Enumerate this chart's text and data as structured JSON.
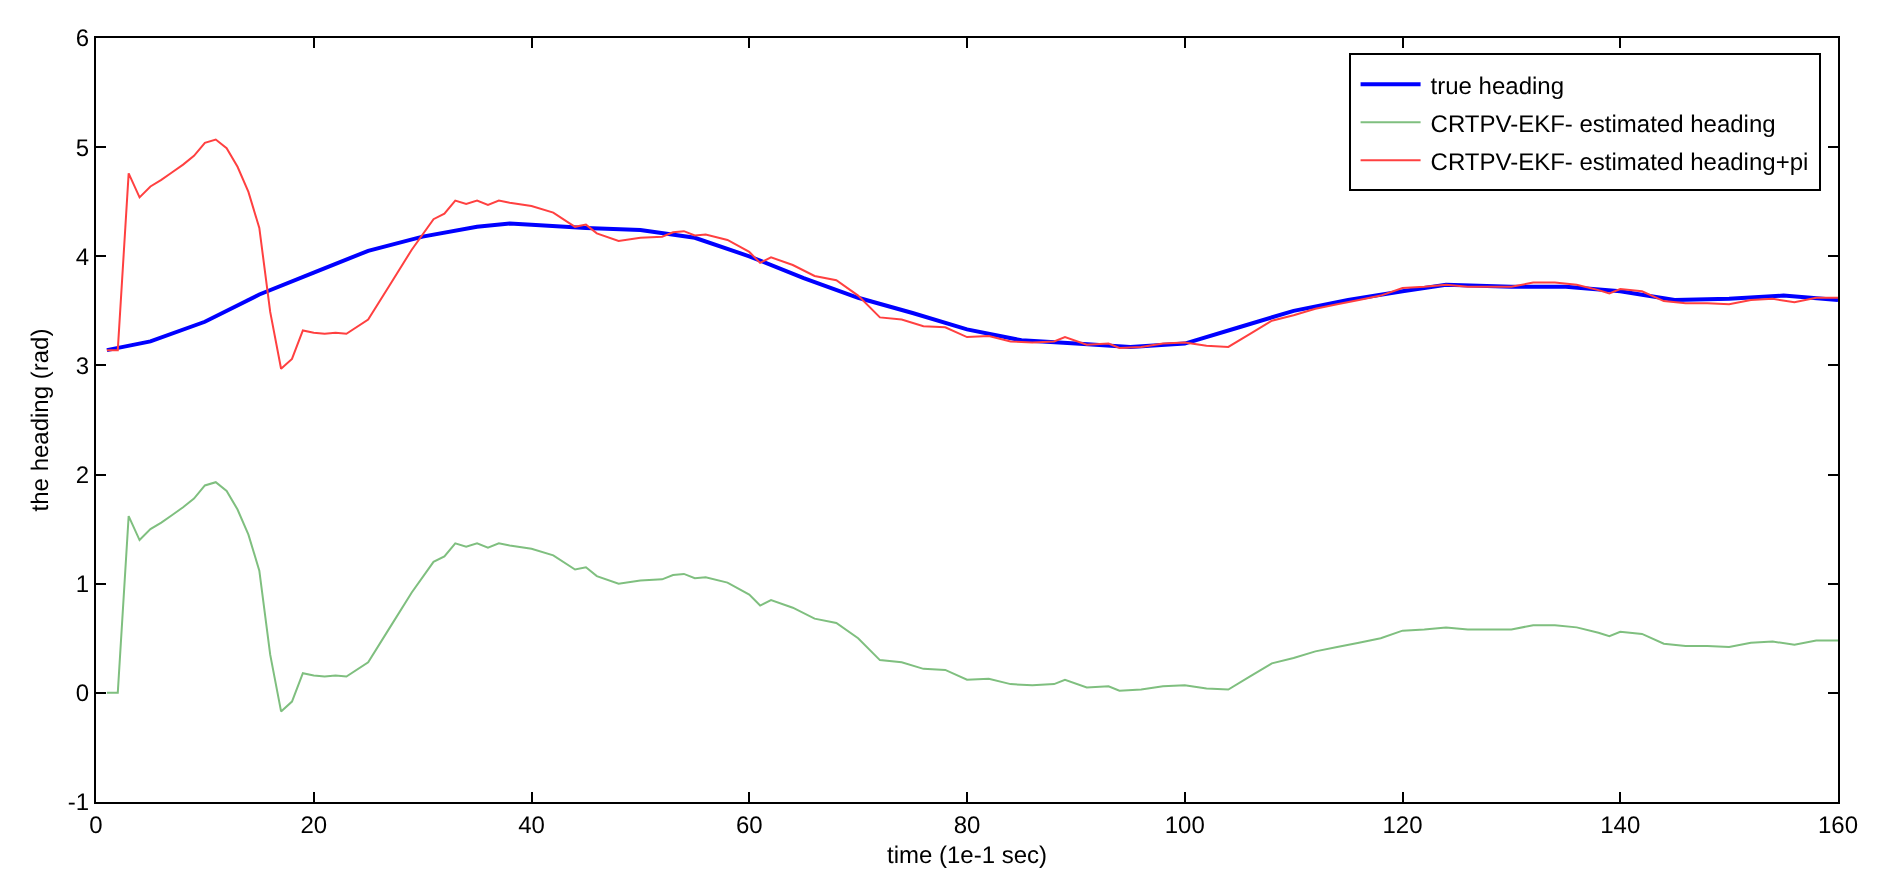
{
  "chart_data": {
    "type": "line",
    "xlabel": "time (1e-1 sec)",
    "ylabel": "the heading (rad)",
    "xlim": [
      0,
      160
    ],
    "xticks": [
      0,
      20,
      40,
      60,
      80,
      100,
      120,
      140,
      160
    ],
    "ylim": [
      -1,
      6
    ],
    "yticks": [
      -1,
      0,
      1,
      2,
      3,
      4,
      5,
      6
    ],
    "grid": false,
    "legend": "top right",
    "series": [
      {
        "name": "true heading",
        "color": "#0000ff",
        "x": [
          1,
          5,
          10,
          15,
          20,
          25,
          30,
          35,
          38,
          40,
          45,
          50,
          55,
          60,
          65,
          70,
          75,
          80,
          85,
          90,
          95,
          100,
          105,
          110,
          115,
          120,
          124,
          130,
          135,
          140,
          145,
          150,
          155,
          160
        ],
        "values": [
          3.14,
          3.22,
          3.4,
          3.65,
          3.85,
          4.05,
          4.18,
          4.27,
          4.3,
          4.29,
          4.26,
          4.24,
          4.17,
          4.0,
          3.8,
          3.62,
          3.48,
          3.33,
          3.23,
          3.2,
          3.17,
          3.2,
          3.35,
          3.5,
          3.6,
          3.68,
          3.74,
          3.72,
          3.72,
          3.68,
          3.6,
          3.61,
          3.64,
          3.6
        ]
      },
      {
        "name": "CRTPV-EKF- estimated heading",
        "color": "#7fbf7f",
        "x": [
          1,
          2,
          3,
          4,
          5,
          6,
          7,
          8,
          9,
          10,
          11,
          12,
          13,
          14,
          15,
          16,
          17,
          18,
          19,
          20,
          21,
          22,
          23,
          25,
          27,
          29,
          31,
          32,
          33,
          34,
          35,
          36,
          37,
          38,
          40,
          42,
          44,
          45,
          46,
          48,
          50,
          52,
          53,
          54,
          55,
          56,
          58,
          60,
          61,
          62,
          64,
          66,
          68,
          70,
          72,
          74,
          76,
          78,
          80,
          82,
          84,
          86,
          88,
          89,
          91,
          93,
          94,
          96,
          98,
          100,
          102,
          104,
          106,
          108,
          110,
          112,
          114,
          116,
          118,
          120,
          122,
          124,
          126,
          128,
          130,
          132,
          134,
          136,
          138,
          139,
          140,
          142,
          144,
          146,
          148,
          150,
          152,
          154,
          156,
          158,
          160
        ],
        "values": [
          0,
          0,
          1.62,
          1.4,
          1.5,
          1.56,
          1.63,
          1.7,
          1.78,
          1.9,
          1.93,
          1.85,
          1.68,
          1.45,
          1.12,
          0.35,
          -0.17,
          -0.08,
          0.18,
          0.16,
          0.15,
          0.16,
          0.15,
          0.28,
          0.6,
          0.92,
          1.2,
          1.25,
          1.37,
          1.34,
          1.37,
          1.33,
          1.37,
          1.35,
          1.32,
          1.26,
          1.13,
          1.15,
          1.07,
          1.0,
          1.03,
          1.04,
          1.08,
          1.09,
          1.05,
          1.06,
          1.01,
          0.9,
          0.8,
          0.85,
          0.78,
          0.68,
          0.64,
          0.5,
          0.3,
          0.28,
          0.22,
          0.21,
          0.12,
          0.13,
          0.08,
          0.07,
          0.08,
          0.12,
          0.05,
          0.06,
          0.02,
          0.03,
          0.06,
          0.07,
          0.04,
          0.03,
          0.15,
          0.27,
          0.32,
          0.38,
          0.42,
          0.46,
          0.5,
          0.57,
          0.58,
          0.6,
          0.58,
          0.58,
          0.58,
          0.62,
          0.62,
          0.6,
          0.55,
          0.52,
          0.56,
          0.54,
          0.45,
          0.43,
          0.43,
          0.42,
          0.46,
          0.47,
          0.44,
          0.48,
          0.48
        ]
      },
      {
        "name": "CRTPV-EKF- estimated heading+pi",
        "color": "#ff4040",
        "x": [
          1,
          2,
          3,
          4,
          5,
          6,
          7,
          8,
          9,
          10,
          11,
          12,
          13,
          14,
          15,
          16,
          17,
          18,
          19,
          20,
          21,
          22,
          23,
          25,
          27,
          29,
          31,
          32,
          33,
          34,
          35,
          36,
          37,
          38,
          40,
          42,
          44,
          45,
          46,
          48,
          50,
          52,
          53,
          54,
          55,
          56,
          58,
          60,
          61,
          62,
          64,
          66,
          68,
          70,
          72,
          74,
          76,
          78,
          80,
          82,
          84,
          86,
          88,
          89,
          91,
          93,
          94,
          96,
          98,
          100,
          102,
          104,
          106,
          108,
          110,
          112,
          114,
          116,
          118,
          120,
          122,
          124,
          126,
          128,
          130,
          132,
          134,
          136,
          138,
          139,
          140,
          142,
          144,
          146,
          148,
          150,
          152,
          154,
          156,
          158,
          160
        ],
        "values": [
          3.14,
          3.14,
          4.76,
          4.54,
          4.64,
          4.7,
          4.77,
          4.84,
          4.92,
          5.04,
          5.07,
          4.99,
          4.82,
          4.59,
          4.26,
          3.49,
          2.97,
          3.06,
          3.32,
          3.3,
          3.29,
          3.3,
          3.29,
          3.42,
          3.74,
          4.06,
          4.34,
          4.39,
          4.51,
          4.48,
          4.51,
          4.47,
          4.51,
          4.49,
          4.46,
          4.4,
          4.27,
          4.29,
          4.21,
          4.14,
          4.17,
          4.18,
          4.22,
          4.23,
          4.19,
          4.2,
          4.15,
          4.04,
          3.94,
          3.99,
          3.92,
          3.82,
          3.78,
          3.64,
          3.44,
          3.42,
          3.36,
          3.35,
          3.26,
          3.27,
          3.22,
          3.21,
          3.22,
          3.26,
          3.19,
          3.2,
          3.16,
          3.17,
          3.2,
          3.21,
          3.18,
          3.17,
          3.29,
          3.41,
          3.46,
          3.52,
          3.56,
          3.6,
          3.64,
          3.71,
          3.72,
          3.74,
          3.72,
          3.72,
          3.72,
          3.76,
          3.76,
          3.74,
          3.69,
          3.66,
          3.7,
          3.68,
          3.59,
          3.57,
          3.57,
          3.56,
          3.6,
          3.61,
          3.58,
          3.62,
          3.62
        ]
      }
    ]
  }
}
